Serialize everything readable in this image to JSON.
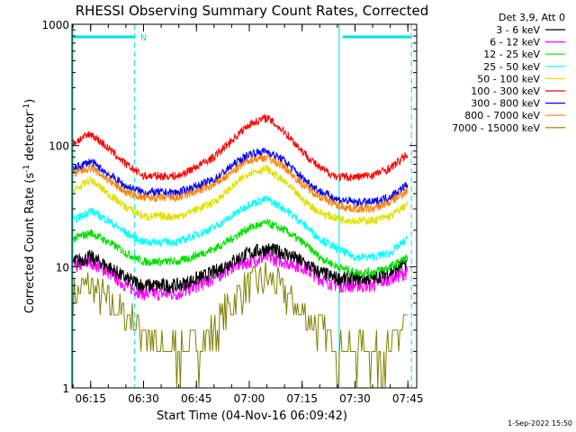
{
  "chart_data": {
    "type": "line",
    "title": "RHESSI Observing Summary Count Rates, Corrected",
    "xlabel": "Start Time (04-Nov-16 06:09:42)",
    "ylabel_main": "Corrected Count Rate (s",
    "ylabel_sup1": "-1",
    "ylabel_mid": " detector",
    "ylabel_sup2": "-1",
    "ylabel_end": ")",
    "yscale": "log",
    "xlim": [
      "06:09:42",
      "07:47:30"
    ],
    "ylim": [
      1,
      1000
    ],
    "x_ticks": [
      "06:15",
      "06:30",
      "06:45",
      "07:00",
      "07:15",
      "07:30",
      "07:45"
    ],
    "y_ticks": [
      "1",
      "10",
      "100",
      "1000"
    ],
    "legend_header": "Det 3,9, Att 0",
    "legend_position": "right",
    "timestamp": "1-Sep-2022 15:50",
    "night_marker_label": "N",
    "markers": [
      {
        "type": "night",
        "start": "06:09:42",
        "end": "06:27:30"
      },
      {
        "type": "saa_day_boundary",
        "time": "07:25:30"
      },
      {
        "type": "night",
        "start": "07:26:30",
        "end": "07:46:00"
      }
    ],
    "series": [
      {
        "name": "3 - 6 keV",
        "color": "#000000",
        "x": [
          "06:10",
          "06:15",
          "06:20",
          "06:25",
          "06:30",
          "06:40",
          "06:50",
          "06:55",
          "07:00",
          "07:05",
          "07:10",
          "07:15",
          "07:20",
          "07:25",
          "07:30",
          "07:35",
          "07:40",
          "07:45"
        ],
        "values": [
          11,
          12,
          10,
          8,
          7,
          7,
          9,
          11,
          13,
          14,
          13,
          11,
          9,
          8,
          8,
          8,
          9,
          11
        ]
      },
      {
        "name": "6 - 12 keV",
        "color": "#ff00ff",
        "x": [
          "06:10",
          "06:15",
          "06:20",
          "06:25",
          "06:30",
          "06:40",
          "06:50",
          "06:55",
          "07:00",
          "07:05",
          "07:10",
          "07:15",
          "07:20",
          "07:25",
          "07:30",
          "07:35",
          "07:40",
          "07:45"
        ],
        "values": [
          10,
          11,
          9,
          7,
          6,
          6,
          8,
          10,
          11,
          12,
          11,
          10,
          8,
          7,
          7,
          7,
          8,
          9
        ]
      },
      {
        "name": "12 - 25 keV",
        "color": "#00e000",
        "x": [
          "06:10",
          "06:15",
          "06:20",
          "06:25",
          "06:30",
          "06:40",
          "06:50",
          "06:55",
          "07:00",
          "07:05",
          "07:10",
          "07:15",
          "07:20",
          "07:25",
          "07:30",
          "07:35",
          "07:40",
          "07:45"
        ],
        "values": [
          17,
          19,
          16,
          13,
          11,
          11,
          14,
          17,
          21,
          23,
          20,
          16,
          12,
          10,
          9,
          9,
          10,
          12
        ]
      },
      {
        "name": "25 - 50 keV",
        "color": "#00ffff",
        "x": [
          "06:10",
          "06:15",
          "06:20",
          "06:25",
          "06:30",
          "06:40",
          "06:50",
          "06:55",
          "07:00",
          "07:05",
          "07:10",
          "07:15",
          "07:20",
          "07:25",
          "07:30",
          "07:35",
          "07:40",
          "07:45"
        ],
        "values": [
          24,
          29,
          24,
          19,
          16,
          16,
          21,
          26,
          33,
          36,
          30,
          23,
          17,
          14,
          12,
          12,
          13,
          17
        ]
      },
      {
        "name": "50 - 100 keV",
        "color": "#e0e000",
        "x": [
          "06:10",
          "06:15",
          "06:20",
          "06:25",
          "06:30",
          "06:40",
          "06:50",
          "06:55",
          "07:00",
          "07:05",
          "07:10",
          "07:15",
          "07:20",
          "07:25",
          "07:30",
          "07:35",
          "07:40",
          "07:45"
        ],
        "values": [
          42,
          52,
          40,
          31,
          26,
          26,
          34,
          45,
          60,
          64,
          50,
          36,
          28,
          25,
          24,
          24,
          26,
          33
        ]
      },
      {
        "name": "100 - 300 keV",
        "color": "#ff0000",
        "x": [
          "06:10",
          "06:15",
          "06:20",
          "06:25",
          "06:30",
          "06:40",
          "06:50",
          "06:55",
          "07:00",
          "07:05",
          "07:10",
          "07:15",
          "07:20",
          "07:25",
          "07:30",
          "07:35",
          "07:40",
          "07:45"
        ],
        "values": [
          105,
          125,
          95,
          70,
          56,
          56,
          80,
          110,
          150,
          170,
          130,
          90,
          65,
          55,
          55,
          57,
          65,
          85
        ]
      },
      {
        "name": "300 - 800 keV",
        "color": "#0000ff",
        "x": [
          "06:10",
          "06:15",
          "06:20",
          "06:25",
          "06:30",
          "06:40",
          "06:50",
          "06:55",
          "07:00",
          "07:05",
          "07:10",
          "07:15",
          "07:20",
          "07:25",
          "07:30",
          "07:35",
          "07:40",
          "07:45"
        ],
        "values": [
          64,
          74,
          58,
          46,
          41,
          41,
          52,
          68,
          85,
          90,
          75,
          54,
          42,
          36,
          34,
          34,
          38,
          48
        ]
      },
      {
        "name": "800 - 7000 keV",
        "color": "#ff8000",
        "x": [
          "06:10",
          "06:15",
          "06:20",
          "06:25",
          "06:30",
          "06:40",
          "06:50",
          "06:55",
          "07:00",
          "07:05",
          "07:10",
          "07:15",
          "07:20",
          "07:25",
          "07:30",
          "07:35",
          "07:40",
          "07:45"
        ],
        "values": [
          58,
          66,
          52,
          41,
          37,
          37,
          47,
          60,
          76,
          80,
          66,
          48,
          38,
          32,
          30,
          30,
          34,
          43
        ]
      },
      {
        "name": "7000 - 15000 keV",
        "color": "#808000",
        "x": [
          "06:10",
          "06:15",
          "06:20",
          "06:25",
          "06:30",
          "06:35",
          "06:40",
          "06:45",
          "06:50",
          "06:55",
          "07:00",
          "07:05",
          "07:10",
          "07:15",
          "07:20",
          "07:25",
          "07:30",
          "07:35",
          "07:40",
          "07:45"
        ],
        "values": [
          6,
          7,
          5,
          4,
          3,
          2,
          2,
          2,
          3,
          5,
          7,
          8,
          6,
          4,
          3,
          2,
          2,
          2,
          2,
          4
        ]
      }
    ]
  }
}
